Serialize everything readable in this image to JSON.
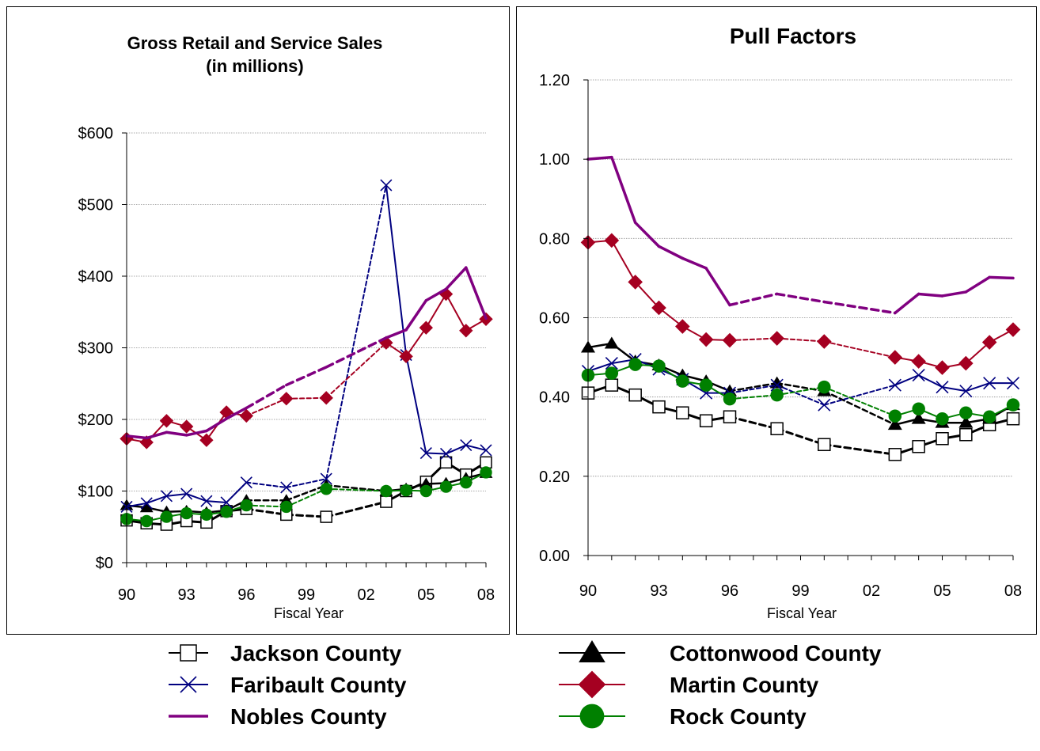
{
  "legend": {
    "entries": [
      "Jackson County",
      "Cottonwood County",
      "Faribault County",
      "Martin County",
      "Nobles County",
      "Rock County"
    ]
  },
  "series_styles": [
    {
      "name": "Jackson County",
      "color": "#000000",
      "marker": "square-open"
    },
    {
      "name": "Cottonwood County",
      "color": "#000000",
      "marker": "triangle"
    },
    {
      "name": "Faribault County",
      "color": "#000080",
      "marker": "x"
    },
    {
      "name": "Martin County",
      "color": "#a50021",
      "marker": "diamond"
    },
    {
      "name": "Nobles County",
      "color": "#800080",
      "marker": "none"
    },
    {
      "name": "Rock County",
      "color": "#008000",
      "marker": "circle"
    }
  ],
  "chart_data": [
    {
      "type": "line",
      "title": "Gross Retail and Service Sales",
      "subtitle": "(in millions)",
      "xlabel": "Fiscal Year",
      "ylabel": "",
      "x_range": [
        1990,
        2008
      ],
      "ylim": [
        0,
        600
      ],
      "y_ticks": [
        "$0",
        "$100",
        "$200",
        "$300",
        "$400",
        "$500",
        "$600"
      ],
      "x_ticks": [
        "90",
        "93",
        "96",
        "99",
        "02",
        "05",
        "08"
      ],
      "grid": true,
      "note": "",
      "series": [
        {
          "name": "Jackson County",
          "x": [
            1990,
            1991,
            1992,
            1993,
            1994,
            1995,
            1996,
            1998,
            2000,
            2003,
            2004,
            2005,
            2006,
            2007,
            2008
          ],
          "y": [
            59,
            55,
            53,
            58,
            56,
            72,
            75,
            67,
            64,
            85,
            100,
            113,
            140,
            123,
            140
          ]
        },
        {
          "name": "Cottonwood County",
          "x": [
            1990,
            1991,
            1992,
            1993,
            1994,
            1995,
            1996,
            1998,
            2000,
            2003,
            2004,
            2005,
            2006,
            2007,
            2008
          ],
          "y": [
            80,
            77,
            71,
            72,
            70,
            73,
            87,
            87,
            108,
            100,
            103,
            110,
            111,
            118,
            125
          ]
        },
        {
          "name": "Faribault County",
          "x": [
            1990,
            1991,
            1992,
            1993,
            1994,
            1995,
            1996,
            1998,
            2000,
            2003,
            2004,
            2005,
            2006,
            2007,
            2008
          ],
          "y": [
            78,
            83,
            93,
            96,
            86,
            84,
            112,
            105,
            117,
            527,
            290,
            153,
            152,
            164,
            157
          ]
        },
        {
          "name": "Martin County",
          "x": [
            1990,
            1991,
            1992,
            1993,
            1994,
            1995,
            1996,
            1998,
            2000,
            2003,
            2004,
            2005,
            2006,
            2007,
            2008
          ],
          "y": [
            173,
            168,
            198,
            190,
            171,
            210,
            205,
            229,
            230,
            307,
            288,
            328,
            375,
            324,
            340
          ]
        },
        {
          "name": "Nobles County",
          "x": [
            1990,
            1991,
            1992,
            1993,
            1994,
            1995,
            1996,
            1998,
            2000,
            2003,
            2004,
            2005,
            2006,
            2007,
            2008
          ],
          "y": [
            177,
            174,
            182,
            178,
            184,
            201,
            216,
            248,
            273,
            314,
            325,
            366,
            382,
            412,
            341
          ]
        },
        {
          "name": "Rock County",
          "x": [
            1990,
            1991,
            1992,
            1993,
            1994,
            1995,
            1996,
            1998,
            2000,
            2003,
            2004,
            2005,
            2006,
            2007,
            2008
          ],
          "y": [
            61,
            58,
            64,
            69,
            67,
            71,
            80,
            78,
            103,
            100,
            101,
            100,
            106,
            112,
            126
          ]
        }
      ]
    },
    {
      "type": "line",
      "title": "Pull Factors",
      "subtitle": "",
      "xlabel": "Fiscal Year",
      "ylabel": "",
      "x_range": [
        1990,
        2008
      ],
      "ylim": [
        0,
        1.2
      ],
      "y_ticks": [
        "0.00",
        "0.20",
        "0.40",
        "0.60",
        "0.80",
        "1.00",
        "1.20"
      ],
      "x_ticks": [
        "90",
        "93",
        "96",
        "99",
        "02",
        "05",
        "08"
      ],
      "grid": true,
      "note": "",
      "series": [
        {
          "name": "Jackson County",
          "x": [
            1990,
            1991,
            1992,
            1993,
            1994,
            1995,
            1996,
            1998,
            2000,
            2003,
            2004,
            2005,
            2006,
            2007,
            2008
          ],
          "y": [
            0.41,
            0.43,
            0.405,
            0.375,
            0.36,
            0.34,
            0.35,
            0.32,
            0.28,
            0.255,
            0.275,
            0.295,
            0.305,
            0.33,
            0.345
          ]
        },
        {
          "name": "Cottonwood County",
          "x": [
            1990,
            1991,
            1992,
            1993,
            1994,
            1995,
            1996,
            1998,
            2000,
            2003,
            2004,
            2005,
            2006,
            2007,
            2008
          ],
          "y": [
            0.525,
            0.535,
            0.49,
            0.48,
            0.455,
            0.44,
            0.415,
            0.435,
            0.415,
            0.33,
            0.345,
            0.335,
            0.335,
            0.345,
            0.38
          ]
        },
        {
          "name": "Faribault County",
          "x": [
            1990,
            1991,
            1992,
            1993,
            1994,
            1995,
            1996,
            1998,
            2000,
            2003,
            2004,
            2005,
            2006,
            2007,
            2008
          ],
          "y": [
            0.465,
            0.485,
            0.495,
            0.47,
            0.445,
            0.41,
            0.41,
            0.43,
            0.38,
            0.43,
            0.455,
            0.425,
            0.415,
            0.435,
            0.435
          ]
        },
        {
          "name": "Martin County",
          "x": [
            1990,
            1991,
            1992,
            1993,
            1994,
            1995,
            1996,
            1998,
            2000,
            2003,
            2004,
            2005,
            2006,
            2007,
            2008
          ],
          "y": [
            0.79,
            0.795,
            0.69,
            0.625,
            0.578,
            0.545,
            0.543,
            0.548,
            0.54,
            0.5,
            0.49,
            0.474,
            0.485,
            0.538,
            0.57
          ]
        },
        {
          "name": "Nobles County",
          "x": [
            1990,
            1991,
            1992,
            1993,
            1994,
            1995,
            1996,
            1998,
            2000,
            2003,
            2004,
            2005,
            2006,
            2007,
            2008
          ],
          "y": [
            1.0,
            1.005,
            0.84,
            0.78,
            0.75,
            0.725,
            0.632,
            0.66,
            0.64,
            0.612,
            0.66,
            0.655,
            0.665,
            0.702,
            0.7
          ]
        },
        {
          "name": "Rock County",
          "x": [
            1990,
            1991,
            1992,
            1993,
            1994,
            1995,
            1996,
            1998,
            2000,
            2003,
            2004,
            2005,
            2006,
            2007,
            2008
          ],
          "y": [
            0.455,
            0.46,
            0.482,
            0.478,
            0.44,
            0.43,
            0.395,
            0.405,
            0.425,
            0.352,
            0.37,
            0.345,
            0.36,
            0.35,
            0.38
          ]
        }
      ]
    }
  ]
}
